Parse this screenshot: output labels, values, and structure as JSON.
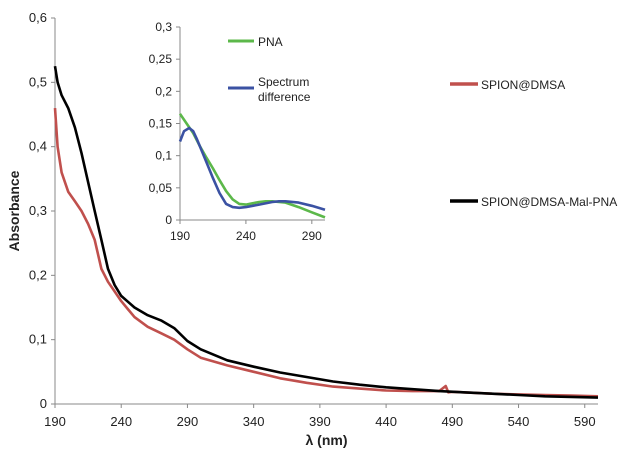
{
  "chart_data": [
    {
      "type": "line",
      "xlabel": "λ (nm)",
      "ylabel": "Absorbance",
      "xlim": [
        190,
        600
      ],
      "ylim": [
        0,
        0.6
      ],
      "x_ticks": [
        "190",
        "240",
        "290",
        "340",
        "390",
        "440",
        "490",
        "540",
        "590"
      ],
      "y_ticks": [
        "0",
        "0,1",
        "0,2",
        "0,3",
        "0,4",
        "0,5",
        "0,6"
      ],
      "grid": false,
      "legend_position": "right",
      "series": [
        {
          "name": "SPION@DMSA",
          "color": "#c0504d",
          "x": [
            190,
            192,
            195,
            200,
            205,
            210,
            215,
            220,
            225,
            230,
            235,
            240,
            250,
            260,
            270,
            280,
            290,
            300,
            320,
            340,
            360,
            380,
            400,
            420,
            440,
            460,
            480,
            485,
            487,
            490,
            500,
            520,
            540,
            560,
            580,
            600
          ],
          "y": [
            0.46,
            0.4,
            0.36,
            0.33,
            0.315,
            0.3,
            0.28,
            0.255,
            0.21,
            0.19,
            0.175,
            0.16,
            0.135,
            0.12,
            0.11,
            0.1,
            0.085,
            0.072,
            0.06,
            0.05,
            0.04,
            0.033,
            0.027,
            0.024,
            0.021,
            0.02,
            0.02,
            0.028,
            0.018,
            0.019,
            0.018,
            0.016,
            0.015,
            0.014,
            0.013,
            0.012
          ]
        },
        {
          "name": "SPION@DMSA-Mal-PNA",
          "color": "#000000",
          "x": [
            190,
            192,
            195,
            200,
            205,
            210,
            215,
            220,
            225,
            230,
            235,
            240,
            250,
            260,
            270,
            280,
            290,
            300,
            320,
            340,
            360,
            380,
            400,
            420,
            440,
            460,
            480,
            500,
            520,
            540,
            560,
            580,
            600
          ],
          "y": [
            0.525,
            0.5,
            0.48,
            0.46,
            0.43,
            0.39,
            0.345,
            0.3,
            0.255,
            0.21,
            0.185,
            0.168,
            0.15,
            0.138,
            0.13,
            0.118,
            0.098,
            0.085,
            0.068,
            0.058,
            0.049,
            0.042,
            0.035,
            0.03,
            0.026,
            0.023,
            0.02,
            0.018,
            0.016,
            0.014,
            0.012,
            0.011,
            0.01
          ]
        }
      ]
    },
    {
      "type": "line",
      "xlabel": "",
      "ylabel": "",
      "xlim": [
        190,
        300
      ],
      "ylim": [
        0,
        0.3
      ],
      "x_ticks": [
        "190",
        "240",
        "290"
      ],
      "y_ticks": [
        "0",
        "0,05",
        "0,1",
        "0,15",
        "0,2",
        "0,25",
        "0,3"
      ],
      "grid": false,
      "legend_position": "top-right",
      "series": [
        {
          "name": "PNA",
          "color": "#5cb84a",
          "x": [
            190,
            195,
            200,
            205,
            210,
            215,
            220,
            225,
            230,
            235,
            240,
            245,
            250,
            255,
            260,
            270,
            280,
            290,
            300
          ],
          "y": [
            0.165,
            0.15,
            0.135,
            0.115,
            0.097,
            0.08,
            0.062,
            0.045,
            0.032,
            0.025,
            0.024,
            0.026,
            0.028,
            0.029,
            0.029,
            0.027,
            0.02,
            0.012,
            0.004
          ]
        },
        {
          "name": "Spectrum difference",
          "color": "#3b52a3",
          "x": [
            190,
            193,
            197,
            200,
            203,
            207,
            210,
            215,
            220,
            225,
            230,
            235,
            240,
            250,
            260,
            265,
            270,
            280,
            290,
            300
          ],
          "y": [
            0.122,
            0.138,
            0.143,
            0.138,
            0.125,
            0.105,
            0.09,
            0.065,
            0.042,
            0.025,
            0.02,
            0.019,
            0.02,
            0.024,
            0.028,
            0.029,
            0.029,
            0.027,
            0.022,
            0.016
          ]
        }
      ]
    }
  ]
}
